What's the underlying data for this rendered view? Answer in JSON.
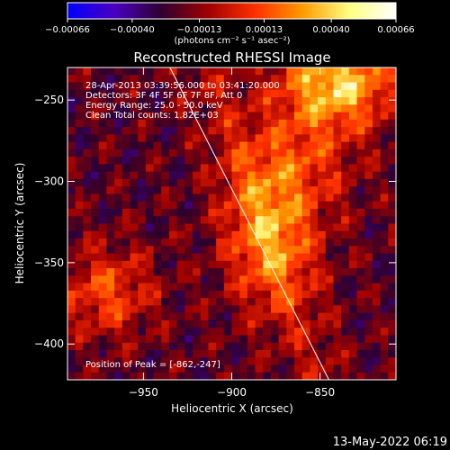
{
  "chart_data": {
    "type": "heatmap",
    "title": "Reconstructed RHESSI Image",
    "xlabel": "Heliocentric X (arcsec)",
    "ylabel": "Heliocentric Y (arcsec)",
    "xlim": [
      -993,
      -807
    ],
    "ylim": [
      -422,
      -230
    ],
    "x_ticks": [
      -950,
      -900,
      -850
    ],
    "x_tick_labels": [
      "−950",
      "−900",
      "−850"
    ],
    "y_ticks": [
      -250,
      -300,
      -350,
      -400
    ],
    "y_tick_labels": [
      "−250",
      "−300",
      "−350",
      "−400"
    ],
    "colorbar": {
      "ticks": [
        -0.00066,
        -0.0004,
        -0.00013,
        0.00013,
        0.0004,
        0.00066
      ],
      "tick_labels": [
        "−0.00066",
        "−0.00040",
        "−0.00013",
        "0.00013",
        "0.00040",
        "0.00066"
      ],
      "label": "(photons cm⁻² s⁻¹ asec⁻²)",
      "colors": [
        "#0000ff",
        "#4a00c0",
        "#300030",
        "#a00000",
        "#ff3000",
        "#ff9a00",
        "#ffff80",
        "#ffffff"
      ]
    },
    "annotations": [
      "28-Apr-2013 03:39:56.000 to 03:41:20.000",
      "Detectors: 3F 4F 5F 6F 7F 8F, Att 0",
      "Energy Range: 25.0 - 50.0 keV",
      "Clean     Total counts: 1.82E+03"
    ],
    "peak_label": "Position of Peak = [-862,-247]",
    "limb_line": {
      "x": [
        -935,
        -845
      ],
      "y": [
        -230,
        -422
      ]
    },
    "grid_size": 42
  },
  "footer": {
    "date": "13-May-2022 06:19"
  }
}
